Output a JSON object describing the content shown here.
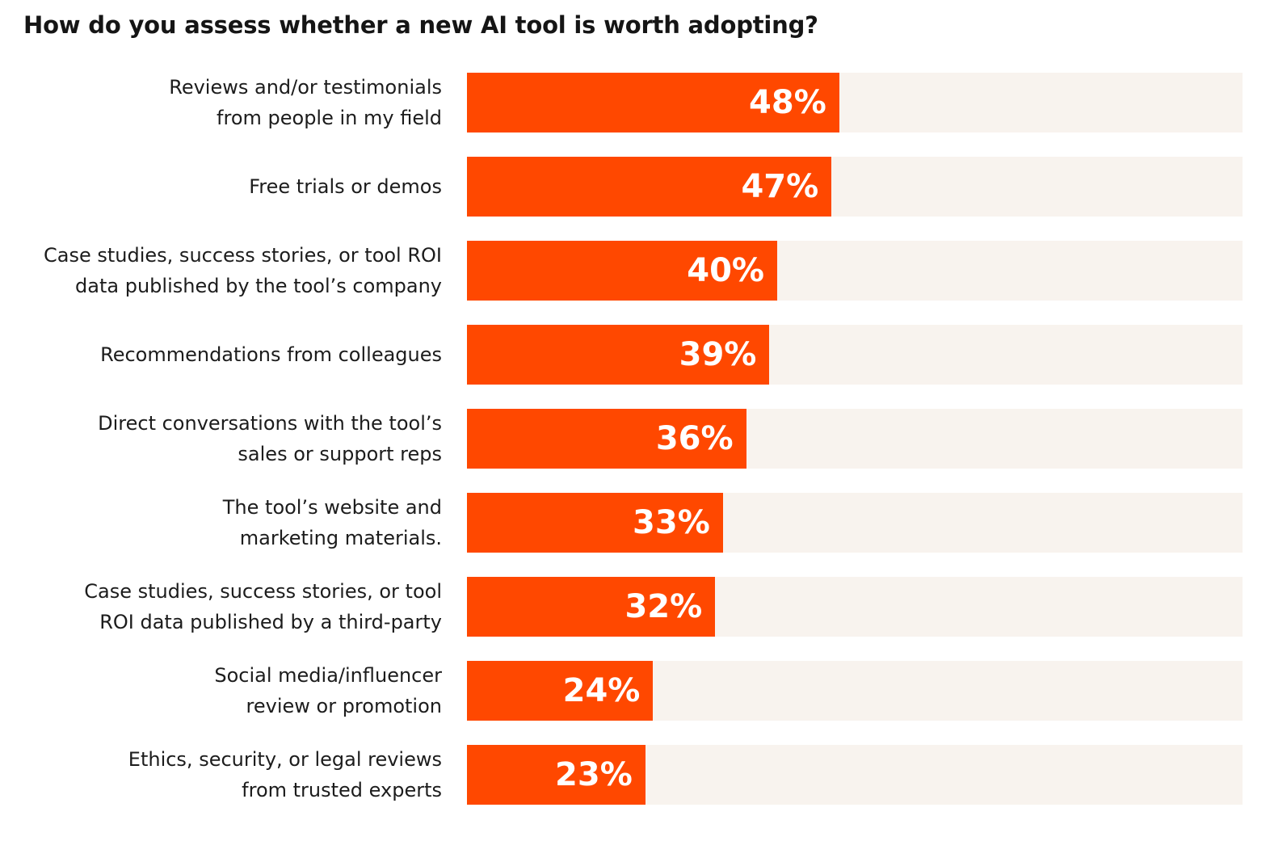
{
  "chart_data": {
    "type": "bar",
    "orientation": "horizontal",
    "title": "How do you assess whether a new AI tool is worth adopting?",
    "xlabel": "",
    "ylabel": "",
    "xlim": [
      0,
      100
    ],
    "grid": false,
    "legend": null,
    "unit": "%",
    "colors": {
      "bar": "#ff4800",
      "track": "#f8f3ee",
      "value_text": "#ffffff",
      "label_text": "#1c1c1c"
    },
    "categories": [
      "Reviews and/or testimonials\nfrom people in my field",
      "Free trials or demos",
      "Case studies, success stories, or tool ROI\ndata published by the tool’s company",
      "Recommendations from colleagues",
      "Direct conversations with the tool’s\nsales or support reps",
      "The tool’s website and\nmarketing materials.",
      "Case studies, success stories, or tool\nROI data published by a third-party",
      "Social media/influencer\nreview or promotion",
      "Ethics, security, or legal reviews\nfrom trusted experts"
    ],
    "values": [
      48,
      47,
      40,
      39,
      36,
      33,
      32,
      24,
      23
    ],
    "value_labels": [
      "48%",
      "47%",
      "40%",
      "39%",
      "36%",
      "33%",
      "32%",
      "24%",
      "23%"
    ]
  }
}
